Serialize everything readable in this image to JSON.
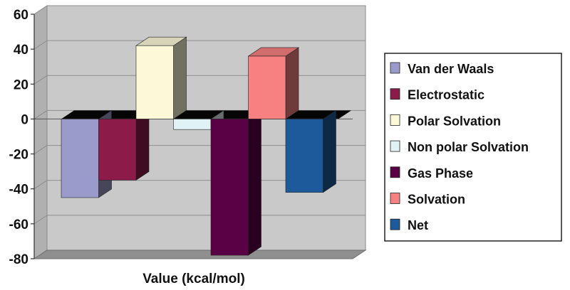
{
  "chart_data": {
    "type": "bar",
    "xlabel": "Value (kcal/mol)",
    "ylabel": "",
    "ylim": [
      -80,
      60
    ],
    "yticks": [
      "60",
      "40",
      "20",
      "0",
      "-20",
      "-40",
      "-60",
      "-80"
    ],
    "grid": true,
    "legend": "right",
    "series": [
      {
        "name": "Van der Waals",
        "value": -45,
        "color": "#9b9bcb"
      },
      {
        "name": "Electrostatic",
        "value": -35,
        "color": "#8c1b4a"
      },
      {
        "name": "Polar Solvation",
        "value": 42,
        "color": "#fdf9d8"
      },
      {
        "name": "Non polar Solvation",
        "value": -6,
        "color": "#e0f2f6"
      },
      {
        "name": "Gas Phase",
        "value": -78,
        "color": "#5a0045"
      },
      {
        "name": "Solvation",
        "value": 36,
        "color": "#f78080"
      },
      {
        "name": "Net",
        "value": -42,
        "color": "#1c5a9c"
      }
    ]
  }
}
